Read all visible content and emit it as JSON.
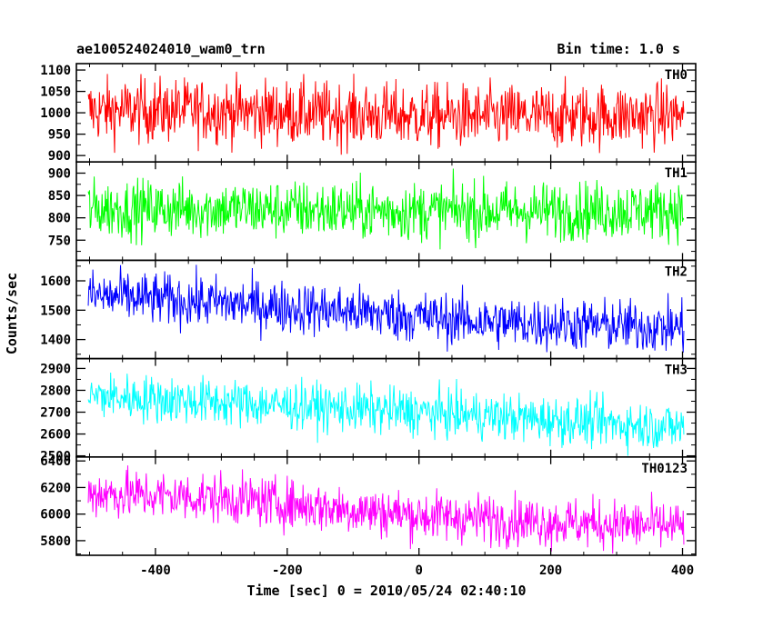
{
  "chart_data": {
    "type": "line",
    "title": "ae100524024010_wam0_trn",
    "subtitle": "Bin time: 1.0 s",
    "xlabel": "Time [sec] 0 = 2010/05/24 02:40:10",
    "ylabel": "Counts/sec",
    "xlim": [
      -520,
      420
    ],
    "x_ticks": [
      -400,
      -200,
      0,
      200,
      400
    ],
    "x_range_data": [
      -502,
      402
    ],
    "bin_time_s": 1.0,
    "panels": [
      {
        "name": "TH0",
        "color": "#ff0000",
        "ylim": [
          885,
          1115
        ],
        "yticks": [
          900,
          950,
          1000,
          1050,
          1100
        ],
        "trend": [
          [
            -502,
            1005
          ],
          [
            -300,
            1005
          ],
          [
            -100,
            995
          ],
          [
            100,
            990
          ],
          [
            402,
            995
          ]
        ],
        "noise": 38
      },
      {
        "name": "TH1",
        "color": "#00ff00",
        "ylim": [
          705,
          925
        ],
        "yticks": [
          750,
          800,
          850,
          900
        ],
        "trend": [
          [
            -502,
            820
          ],
          [
            -300,
            820
          ],
          [
            0,
            815
          ],
          [
            200,
            815
          ],
          [
            402,
            818
          ]
        ],
        "noise": 33
      },
      {
        "name": "TH2",
        "color": "#0000ff",
        "ylim": [
          1335,
          1670
        ],
        "yticks": [
          1400,
          1500,
          1600
        ],
        "trend": [
          [
            -502,
            1550
          ],
          [
            -300,
            1525
          ],
          [
            -100,
            1495
          ],
          [
            100,
            1460
          ],
          [
            402,
            1440
          ]
        ],
        "noise": 45
      },
      {
        "name": "TH3",
        "color": "#00ffff",
        "ylim": [
          2495,
          2945
        ],
        "yticks": [
          2500,
          2600,
          2700,
          2800,
          2900
        ],
        "trend": [
          [
            -502,
            2775
          ],
          [
            -300,
            2745
          ],
          [
            0,
            2700
          ],
          [
            200,
            2665
          ],
          [
            402,
            2630
          ]
        ],
        "noise": 55
      },
      {
        "name": "TH0123",
        "color": "#ff00ff",
        "ylim": [
          5690,
          6430
        ],
        "yticks": [
          5800,
          6000,
          6200,
          6400
        ],
        "trend": [
          [
            -502,
            6160
          ],
          [
            -300,
            6120
          ],
          [
            0,
            5990
          ],
          [
            200,
            5940
          ],
          [
            402,
            5905
          ]
        ],
        "noise": 95
      }
    ]
  }
}
